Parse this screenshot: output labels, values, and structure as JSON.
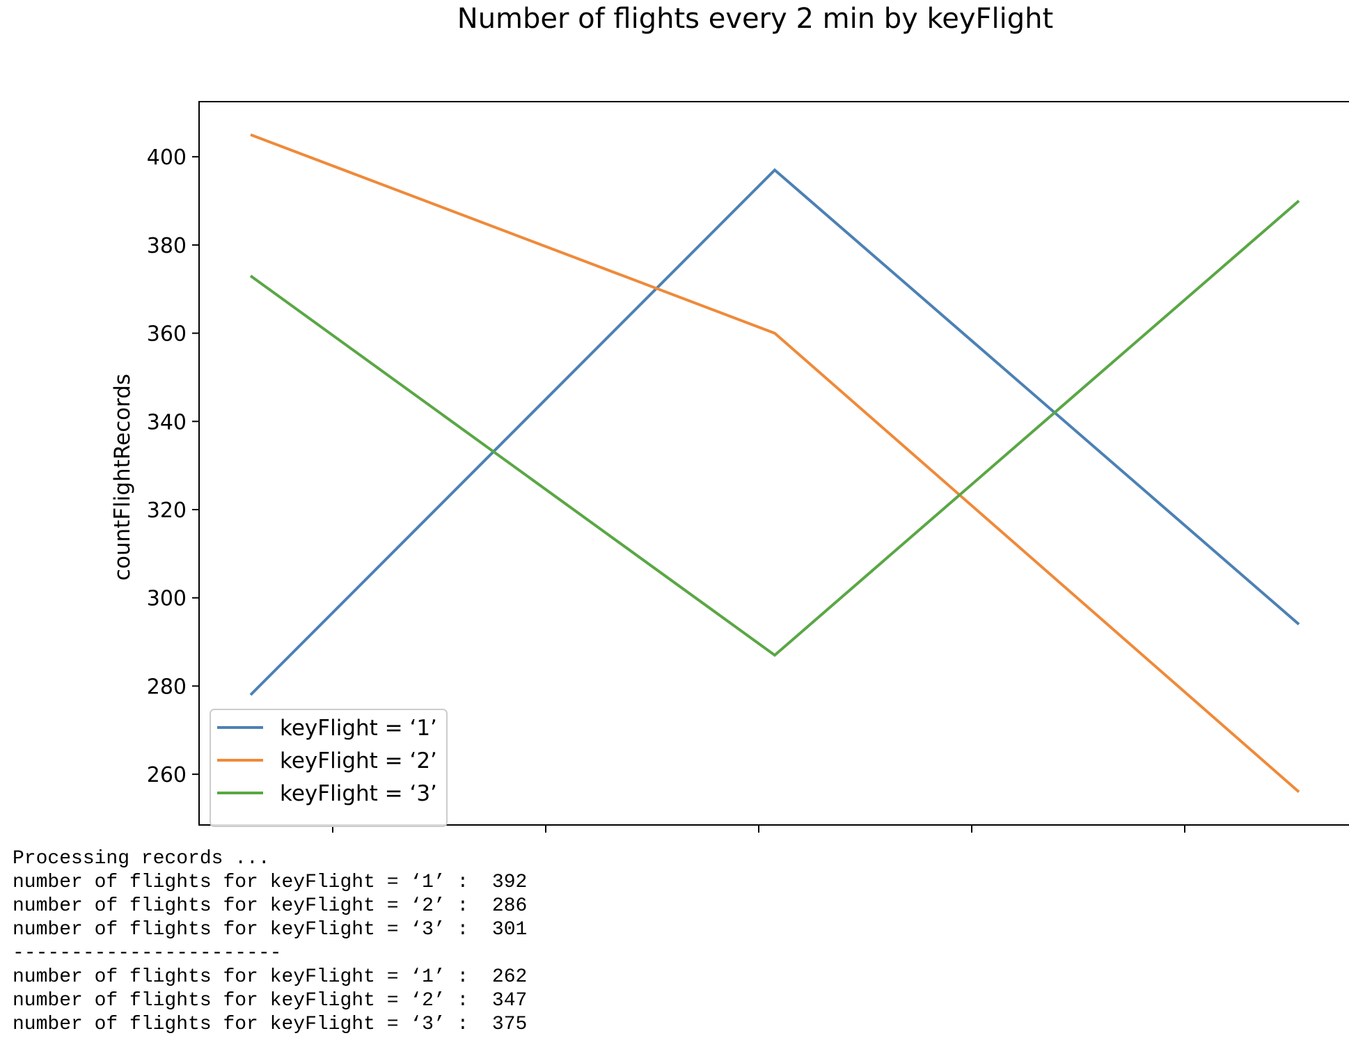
{
  "chart_data": {
    "type": "line",
    "title": "Number of flights every 2 min by keyFlight",
    "xlabel": "",
    "ylabel": "countFlightRecords",
    "x": [
      0,
      1,
      2
    ],
    "x_tick_labels": [
      "",
      "",
      "",
      "",
      ""
    ],
    "y_ticks": [
      260,
      280,
      300,
      320,
      340,
      360,
      380,
      400
    ],
    "ylim": [
      248.5,
      412.5
    ],
    "grid": false,
    "legend_position": "lower-left",
    "series": [
      {
        "name": "keyFlight = ‘1’",
        "color": "#4c81b4",
        "values": [
          278,
          397,
          294
        ]
      },
      {
        "name": "keyFlight = ‘2’",
        "color": "#ef8a3a",
        "values": [
          405,
          360,
          256
        ]
      },
      {
        "name": "keyFlight = ‘3’",
        "color": "#5aa745",
        "values": [
          373,
          287,
          390
        ]
      }
    ]
  },
  "console": {
    "lines": [
      "Processing records ...",
      "number of flights for keyFlight = ‘1’ :  392",
      "number of flights for keyFlight = ‘2’ :  286",
      "number of flights for keyFlight = ‘3’ :  301",
      "-----------------------",
      "number of flights for keyFlight = ‘1’ :  262",
      "number of flights for keyFlight = ‘2’ :  347",
      "number of flights for keyFlight = ‘3’ :  375"
    ]
  }
}
